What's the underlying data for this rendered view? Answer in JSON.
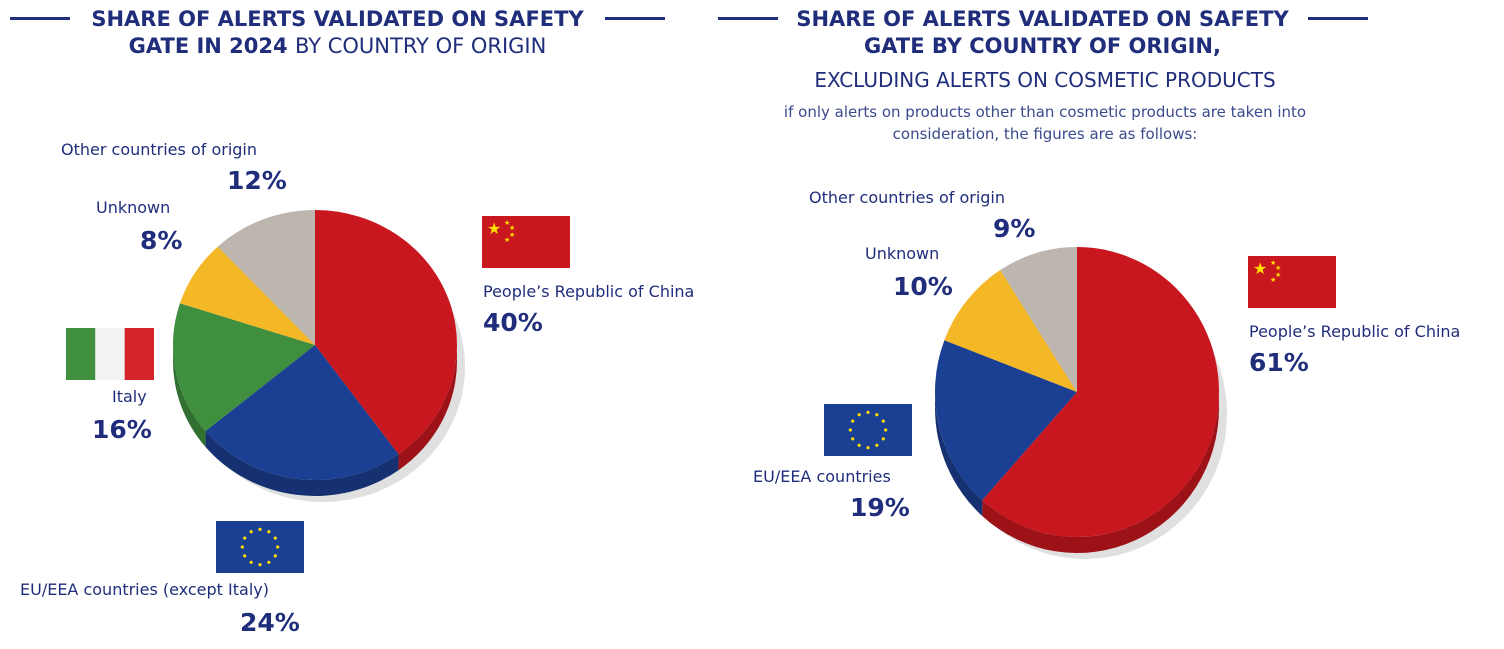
{
  "colors": {
    "china": "#c8171e",
    "eu": "#1b3f92",
    "italy": "#3f8f3f",
    "unknown": "#f4b826",
    "other": "#bdb6ae",
    "text": "#1f2d7b"
  },
  "chart_data": [
    {
      "type": "pie",
      "title_bold": "SHARE OF ALERTS VALIDATED ON SAFETY GATE IN 2024",
      "title_light": "BY COUNTRY OF ORIGIN",
      "slices": [
        {
          "label": "People’s Republic of China",
          "value": 40,
          "pct_label": "40%",
          "color_key": "china",
          "icon": "china-flag"
        },
        {
          "label": "EU/EEA countries (except Italy)",
          "value": 24,
          "pct_label": "24%",
          "color_key": "eu",
          "icon": "eu-flag"
        },
        {
          "label": "Italy",
          "value": 16,
          "pct_label": "16%",
          "color_key": "italy",
          "icon": "italy-flag"
        },
        {
          "label": "Unknown",
          "value": 8,
          "pct_label": "8%",
          "color_key": "unknown"
        },
        {
          "label": "Other countries of origin",
          "value": 12,
          "pct_label": "12%",
          "color_key": "other"
        }
      ]
    },
    {
      "type": "pie",
      "title_bold": "SHARE OF ALERTS VALIDATED ON SAFETY GATE BY COUNTRY OF ORIGIN,",
      "subtitle": "EXCLUDING ALERTS ON COSMETIC PRODUCTS",
      "note": "if only alerts on products other than cosmetic products are taken into consideration, the figures are as follows:",
      "slices": [
        {
          "label": "People’s Republic of China",
          "value": 61,
          "pct_label": "61%",
          "color_key": "china",
          "icon": "china-flag"
        },
        {
          "label": "EU/EEA countries",
          "value": 19,
          "pct_label": "19%",
          "color_key": "eu",
          "icon": "eu-flag"
        },
        {
          "label": "Unknown",
          "value": 10,
          "pct_label": "10%",
          "color_key": "unknown"
        },
        {
          "label": "Other countries of origin",
          "value": 9,
          "pct_label": "9%",
          "color_key": "other"
        }
      ]
    }
  ]
}
